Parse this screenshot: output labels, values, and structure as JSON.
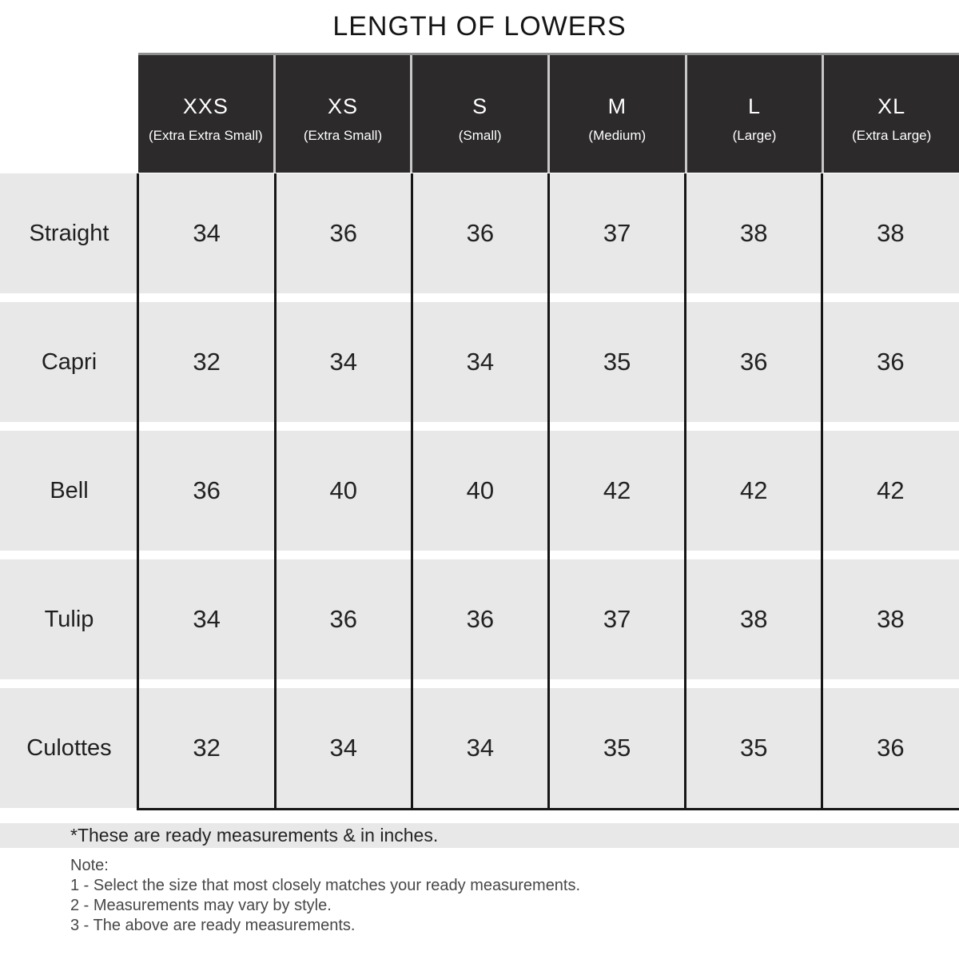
{
  "title": "LENGTH OF LOWERS",
  "footnote": "*These are ready measurements & in inches.",
  "notes": {
    "heading": "Note:",
    "items": [
      "1 - Select the size that most closely matches your ready measurements.",
      "2 - Measurements may vary by style.",
      "3 - The above are ready measurements."
    ]
  },
  "colors": {
    "header_bg": "#2c2a2b",
    "row_bg": "#e9e8e8",
    "divider_line": "#161616",
    "header_separator": "#c8c8c8",
    "header_text": "#ffffff",
    "body_text": "#222222"
  },
  "chart_data": {
    "type": "table",
    "title": "LENGTH OF LOWERS",
    "unit": "inches",
    "columns": [
      {
        "size": "XXS",
        "full": "(Extra Extra Small)"
      },
      {
        "size": "XS",
        "full": "(Extra Small)"
      },
      {
        "size": "S",
        "full": "(Small)"
      },
      {
        "size": "M",
        "full": "(Medium)"
      },
      {
        "size": "L",
        "full": "(Large)"
      },
      {
        "size": "XL",
        "full": "(Extra Large)"
      }
    ],
    "rows": [
      {
        "label": "Straight",
        "values": [
          "34",
          "36",
          "36",
          "37",
          "38",
          "38"
        ]
      },
      {
        "label": "Capri",
        "values": [
          "32",
          "34",
          "34",
          "35",
          "36",
          "36"
        ]
      },
      {
        "label": "Bell",
        "values": [
          "36",
          "40",
          "40",
          "42",
          "42",
          "42"
        ]
      },
      {
        "label": "Tulip",
        "values": [
          "34",
          "36",
          "36",
          "37",
          "38",
          "38"
        ]
      },
      {
        "label": "Culottes",
        "values": [
          "32",
          "34",
          "34",
          "35",
          "35",
          "36"
        ]
      }
    ]
  }
}
